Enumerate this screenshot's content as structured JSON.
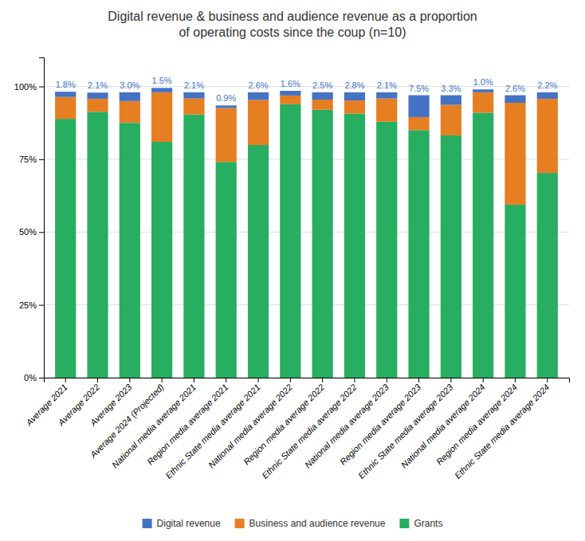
{
  "chart_data": {
    "type": "bar",
    "title": "Digital revenue & business and audience revenue as a proportion\nof operating costs since the coup (n=10)",
    "categories": [
      "Average 2021",
      "Average 2022",
      "Average 2023",
      "Average 2024 (Projected)",
      "National media average 2021",
      "Region media average 2021",
      "Ethnic State media average 2021",
      "National media average 2022",
      "Region media average 2022",
      "Ethnic State media average 2022",
      "National media average 2023",
      "Region media average 2023",
      "Ethnic State media average 2023",
      "National media average 2024",
      "Region media average 2024",
      "Ethnic State media average 2024"
    ],
    "series": [
      {
        "name": "Grants",
        "color": "#27ae60",
        "values": [
          88.9,
          91.3,
          87.5,
          81.0,
          90.4,
          74.1,
          79.9,
          93.9,
          92.0,
          90.7,
          87.9,
          85.0,
          83.2,
          91.0,
          59.4,
          70.3
        ]
      },
      {
        "name": "Business and audience revenue",
        "color": "#e67e22",
        "values": [
          7.5,
          4.5,
          7.5,
          17.0,
          5.5,
          18.5,
          15.5,
          3.0,
          3.5,
          4.5,
          8.0,
          4.5,
          10.5,
          7.0,
          35.0,
          25.5
        ]
      },
      {
        "name": "Digital revenue",
        "color": "#4472c4",
        "values": [
          1.8,
          2.1,
          3.0,
          1.5,
          2.1,
          0.9,
          2.6,
          1.6,
          2.5,
          2.8,
          2.1,
          7.5,
          3.3,
          1.0,
          2.6,
          2.2
        ],
        "data_labels": true,
        "value_labels": [
          "1.8%",
          "2.1%",
          "3.0%",
          "1.5%",
          "2.1%",
          "0.9%",
          "2.6%",
          "1.6%",
          "2.5%",
          "2.8%",
          "2.1%",
          "7.5%",
          "3.3%",
          "1.0%",
          "2.6%",
          "2.2%"
        ]
      }
    ],
    "stacked": true,
    "ylim": [
      0,
      110
    ],
    "yticks": [
      {
        "value": 0,
        "label": "0%"
      },
      {
        "value": 25,
        "label": "25%"
      },
      {
        "value": 50,
        "label": "50%"
      },
      {
        "value": 75,
        "label": "75%"
      },
      {
        "value": 100,
        "label": "100%"
      }
    ],
    "grid": true
  }
}
